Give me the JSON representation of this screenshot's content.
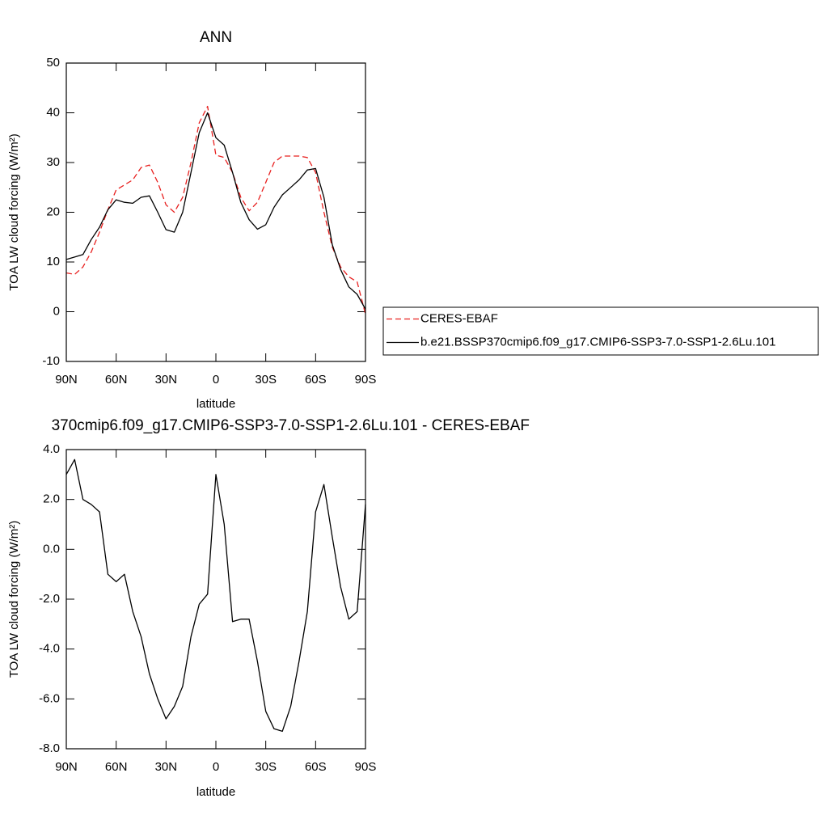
{
  "chart_data": [
    {
      "type": "line",
      "title": "ANN",
      "xlabel": "latitude",
      "ylabel": "TOA LW cloud forcing (W/m²)",
      "x": [
        90,
        85,
        80,
        75,
        70,
        65,
        60,
        55,
        50,
        45,
        40,
        35,
        30,
        25,
        20,
        15,
        10,
        5,
        0,
        -5,
        -10,
        -15,
        -20,
        -25,
        -30,
        -35,
        -40,
        -45,
        -50,
        -55,
        -60,
        -65,
        -70,
        -75,
        -80,
        -85,
        -90
      ],
      "series": [
        {
          "name": "CERES-EBAF",
          "color": "#e8201f",
          "dashed": true,
          "values": [
            7.8,
            7.5,
            9,
            12,
            16,
            20.5,
            24.5,
            25.5,
            26.5,
            29,
            29.5,
            26,
            21.5,
            20,
            23,
            30,
            38,
            41.3,
            31.5,
            31,
            28,
            23,
            20.3,
            22,
            26,
            30,
            31.3,
            31.3,
            31.3,
            31,
            28,
            20,
            13,
            9,
            7,
            6,
            -0.5
          ]
        },
        {
          "name": "b.e21.BSSP370cmip6.f09_g17.CMIP6-SSP3-7.0-SSP1-2.6Lu.101",
          "color": "#000000",
          "dashed": false,
          "values": [
            10.5,
            11,
            11.5,
            14.5,
            17,
            20.5,
            22.5,
            22,
            21.8,
            23,
            23.3,
            20,
            16.5,
            16,
            20,
            28,
            36,
            40,
            35,
            33.5,
            28,
            22,
            18.5,
            16.6,
            17.5,
            21,
            23.5,
            25,
            26.5,
            28.5,
            28.8,
            23,
            13.5,
            8.5,
            5,
            3.5,
            0.5
          ]
        }
      ],
      "xlim": [
        90,
        -90
      ],
      "xticks": [
        {
          "value": 90,
          "label": "90N"
        },
        {
          "value": 60,
          "label": "60N"
        },
        {
          "value": 30,
          "label": "30N"
        },
        0,
        {
          "value": -30,
          "label": "30S"
        },
        {
          "value": -60,
          "label": "60S"
        },
        {
          "value": -90,
          "label": "90S"
        }
      ],
      "ylim": [
        -10,
        50
      ],
      "yticks": [
        -10,
        0,
        10,
        20,
        30,
        40,
        50
      ]
    },
    {
      "type": "line",
      "title": "370cmip6.f09_g17.CMIP6-SSP3-7.0-SSP1-2.6Lu.101 - CERES-EBAF",
      "xlabel": "latitude",
      "ylabel": "TOA LW cloud forcing (W/m²)",
      "x": [
        90,
        85,
        80,
        75,
        70,
        65,
        60,
        55,
        50,
        45,
        40,
        35,
        30,
        25,
        20,
        15,
        10,
        5,
        0,
        -5,
        -10,
        -15,
        -20,
        -25,
        -30,
        -35,
        -40,
        -45,
        -50,
        -55,
        -60,
        -65,
        -70,
        -75,
        -80,
        -85,
        -90
      ],
      "series": [
        {
          "color": "#000000",
          "dashed": false,
          "values": [
            3.0,
            3.6,
            2.0,
            1.8,
            1.5,
            -1.0,
            -1.3,
            -1.0,
            -2.5,
            -3.5,
            -5.0,
            -6.0,
            -6.8,
            -6.3,
            -5.5,
            -3.5,
            -2.2,
            -1.8,
            3.0,
            1.0,
            -2.9,
            -2.8,
            -2.8,
            -4.5,
            -6.5,
            -7.2,
            -7.3,
            -6.3,
            -4.5,
            -2.5,
            1.5,
            2.6,
            0.5,
            -1.5,
            -2.8,
            -2.5,
            1.8
          ]
        }
      ],
      "xlim": [
        90,
        -90
      ],
      "xticks": [
        {
          "value": 90,
          "label": "90N"
        },
        {
          "value": 60,
          "label": "60N"
        },
        {
          "value": 30,
          "label": "30N"
        },
        0,
        {
          "value": -30,
          "label": "30S"
        },
        {
          "value": -60,
          "label": "60S"
        },
        {
          "value": -90,
          "label": "90S"
        }
      ],
      "ylim": [
        -8,
        4
      ],
      "yticks": [
        {
          "value": -8,
          "label": "-8.0"
        },
        {
          "value": -6,
          "label": "-6.0"
        },
        {
          "value": -4,
          "label": "-4.0"
        },
        {
          "value": -2,
          "label": "-2.0"
        },
        {
          "value": 0,
          "label": "0.0"
        },
        {
          "value": 2,
          "label": "2.0"
        },
        {
          "value": 4,
          "label": "4.0"
        }
      ]
    }
  ]
}
